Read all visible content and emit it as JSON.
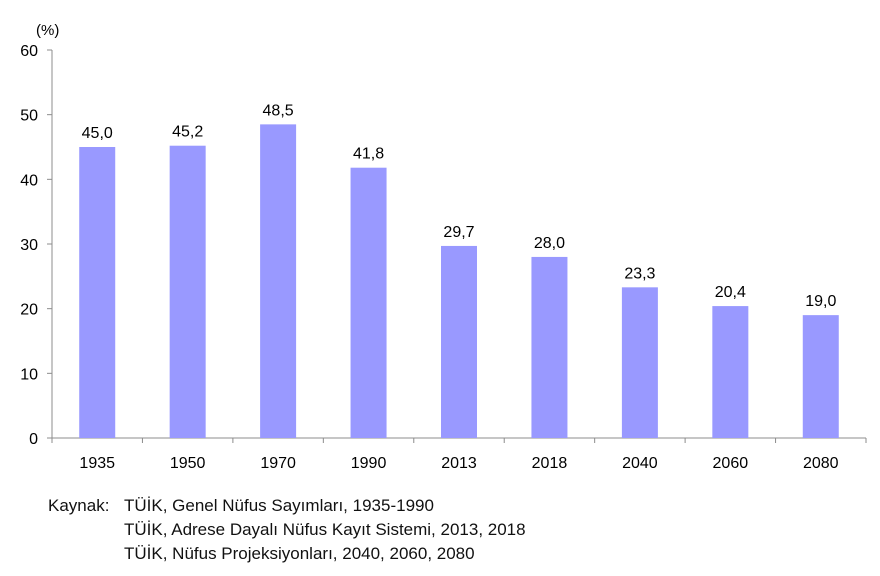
{
  "chart_data": {
    "type": "bar",
    "unit_label": "(%)",
    "categories": [
      "1935",
      "1950",
      "1970",
      "1990",
      "2013",
      "2018",
      "2040",
      "2060",
      "2080"
    ],
    "values": [
      45.0,
      45.2,
      48.5,
      41.8,
      29.7,
      28.0,
      23.3,
      20.4,
      19.0
    ],
    "data_labels": [
      "45,0",
      "45,2",
      "48,5",
      "41,8",
      "29,7",
      "28,0",
      "23,3",
      "20,4",
      "19,0"
    ],
    "ylim": [
      0,
      60
    ],
    "yticks": [
      0,
      10,
      20,
      30,
      40,
      50,
      60
    ],
    "grid": false,
    "legend": "none",
    "bar_color": "#9999ff"
  },
  "source": {
    "prefix": "Kaynak:",
    "lines": [
      "TÜİK, Genel Nüfus Sayımları, 1935-1990",
      "TÜİK, Adrese Dayalı Nüfus Kayıt Sistemi, 2013, 2018",
      "TÜİK, Nüfus Projeksiyonları, 2040, 2060, 2080"
    ]
  }
}
